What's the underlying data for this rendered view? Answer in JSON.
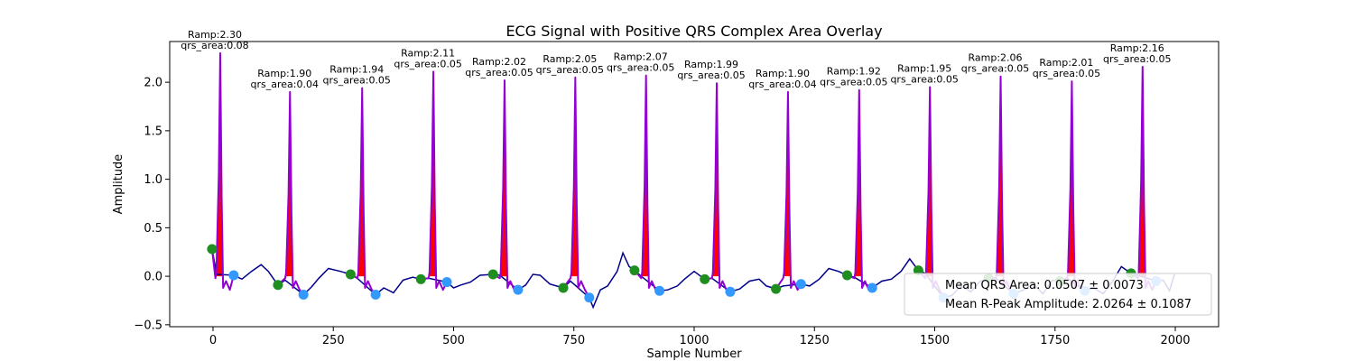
{
  "chart_data": {
    "type": "line",
    "title": "ECG Signal with Positive QRS Complex Area Overlay",
    "xlabel": "Sample Number",
    "ylabel": "Amplitude",
    "xlim": [
      -90,
      2090
    ],
    "ylim": [
      -0.52,
      2.42
    ],
    "xticks": [
      0,
      250,
      500,
      750,
      1000,
      1250,
      1500,
      1750,
      2000
    ],
    "yticks": [
      -0.5,
      0.0,
      0.5,
      1.0,
      1.5,
      2.0
    ],
    "grid": false,
    "legend_position": "lower-right",
    "legend": [
      "Mean QRS Area: 0.0507 ± 0.0073",
      "Mean R-Peak Amplitude: 2.0264 ± 0.1087"
    ],
    "colors": {
      "signal": "#00008b",
      "qrs_segment": "#9400d3",
      "qrs_area": "#ff0000",
      "q_point": "#1e8e1e",
      "s_point": "#3399ff"
    },
    "beats": [
      {
        "r_x": 15,
        "r_amp": 2.3,
        "qrs_area": 0.08,
        "q_x": -2,
        "q_y": 0.28,
        "s_x": 43,
        "s_y": 0.01,
        "label_amp": "Ramp:2.30",
        "label_area": "qrs_area:0.08"
      },
      {
        "r_x": 160,
        "r_amp": 1.9,
        "qrs_area": 0.04,
        "q_x": 135,
        "q_y": -0.09,
        "s_x": 188,
        "s_y": -0.19,
        "label_amp": "Ramp:1.90",
        "label_area": "qrs_area:0.04"
      },
      {
        "r_x": 310,
        "r_amp": 1.94,
        "qrs_area": 0.05,
        "q_x": 286,
        "q_y": 0.02,
        "s_x": 338,
        "s_y": -0.19,
        "label_amp": "Ramp:1.94",
        "label_area": "qrs_area:0.05"
      },
      {
        "r_x": 458,
        "r_amp": 2.11,
        "qrs_area": 0.05,
        "q_x": 432,
        "q_y": -0.03,
        "s_x": 486,
        "s_y": -0.06,
        "label_amp": "Ramp:2.11",
        "label_area": "qrs_area:0.05"
      },
      {
        "r_x": 606,
        "r_amp": 2.02,
        "qrs_area": 0.05,
        "q_x": 582,
        "q_y": 0.02,
        "s_x": 634,
        "s_y": -0.14,
        "label_amp": "Ramp:2.02",
        "label_area": "qrs_area:0.05"
      },
      {
        "r_x": 753,
        "r_amp": 2.05,
        "qrs_area": 0.05,
        "q_x": 728,
        "q_y": -0.12,
        "s_x": 782,
        "s_y": -0.22,
        "label_amp": "Ramp:2.05",
        "label_area": "qrs_area:0.05"
      },
      {
        "r_x": 900,
        "r_amp": 2.07,
        "qrs_area": 0.05,
        "q_x": 876,
        "q_y": 0.06,
        "s_x": 928,
        "s_y": -0.15,
        "label_amp": "Ramp:2.07",
        "label_area": "qrs_area:0.05"
      },
      {
        "r_x": 1047,
        "r_amp": 1.99,
        "qrs_area": 0.05,
        "q_x": 1022,
        "q_y": -0.03,
        "s_x": 1075,
        "s_y": -0.16,
        "label_amp": "Ramp:1.99",
        "label_area": "qrs_area:0.05"
      },
      {
        "r_x": 1195,
        "r_amp": 1.9,
        "qrs_area": 0.04,
        "q_x": 1170,
        "q_y": -0.13,
        "s_x": 1222,
        "s_y": -0.08,
        "label_amp": "Ramp:1.90",
        "label_area": "qrs_area:0.04"
      },
      {
        "r_x": 1343,
        "r_amp": 1.92,
        "qrs_area": 0.05,
        "q_x": 1318,
        "q_y": 0.01,
        "s_x": 1370,
        "s_y": -0.12,
        "label_amp": "Ramp:1.92",
        "label_area": "qrs_area:0.05"
      },
      {
        "r_x": 1490,
        "r_amp": 1.95,
        "qrs_area": 0.05,
        "q_x": 1466,
        "q_y": 0.06,
        "s_x": 1518,
        "s_y": -0.22,
        "label_amp": "Ramp:1.95",
        "label_area": "qrs_area:0.05"
      },
      {
        "r_x": 1637,
        "r_amp": 2.06,
        "qrs_area": 0.05,
        "q_x": 1612,
        "q_y": -0.02,
        "s_x": 1664,
        "s_y": -0.18,
        "label_amp": "Ramp:2.06",
        "label_area": "qrs_area:0.05"
      },
      {
        "r_x": 1785,
        "r_amp": 2.01,
        "qrs_area": 0.05,
        "q_x": 1760,
        "q_y": -0.05,
        "s_x": 1812,
        "s_y": -0.15,
        "label_amp": "Ramp:2.01",
        "label_area": "qrs_area:0.05"
      },
      {
        "r_x": 1932,
        "r_amp": 2.16,
        "qrs_area": 0.05,
        "q_x": 1908,
        "q_y": 0.03,
        "s_x": 1960,
        "s_y": -0.05,
        "label_amp": "Ramp:2.16",
        "label_area": "qrs_area:0.05"
      }
    ],
    "baseline": [
      [
        -2,
        0.28
      ],
      [
        8,
        0.02
      ],
      [
        43,
        0.01
      ],
      [
        60,
        -0.03
      ],
      [
        80,
        0.05
      ],
      [
        100,
        0.12
      ],
      [
        115,
        0.05
      ],
      [
        135,
        -0.09
      ],
      [
        150,
        -0.04
      ],
      [
        188,
        -0.19
      ],
      [
        205,
        -0.11
      ],
      [
        220,
        -0.02
      ],
      [
        240,
        0.08
      ],
      [
        265,
        0.05
      ],
      [
        286,
        0.02
      ],
      [
        300,
        -0.02
      ],
      [
        338,
        -0.19
      ],
      [
        355,
        -0.12
      ],
      [
        375,
        -0.17
      ],
      [
        395,
        -0.04
      ],
      [
        415,
        -0.01
      ],
      [
        432,
        -0.03
      ],
      [
        448,
        -0.02
      ],
      [
        486,
        -0.06
      ],
      [
        500,
        -0.12
      ],
      [
        515,
        -0.09
      ],
      [
        535,
        -0.06
      ],
      [
        555,
        0.01
      ],
      [
        582,
        0.02
      ],
      [
        596,
        0.01
      ],
      [
        634,
        -0.14
      ],
      [
        650,
        -0.09
      ],
      [
        665,
        0.02
      ],
      [
        680,
        0.01
      ],
      [
        700,
        -0.08
      ],
      [
        728,
        -0.12
      ],
      [
        743,
        -0.05
      ],
      [
        782,
        -0.22
      ],
      [
        790,
        -0.32
      ],
      [
        805,
        -0.14
      ],
      [
        820,
        -0.1
      ],
      [
        840,
        0.05
      ],
      [
        852,
        0.24
      ],
      [
        865,
        0.1
      ],
      [
        876,
        0.06
      ],
      [
        890,
        0.0
      ],
      [
        928,
        -0.15
      ],
      [
        945,
        -0.14
      ],
      [
        965,
        -0.1
      ],
      [
        980,
        -0.03
      ],
      [
        1000,
        0.05
      ],
      [
        1022,
        -0.03
      ],
      [
        1037,
        -0.02
      ],
      [
        1075,
        -0.16
      ],
      [
        1095,
        -0.13
      ],
      [
        1115,
        -0.05
      ],
      [
        1135,
        -0.03
      ],
      [
        1150,
        -0.1
      ],
      [
        1170,
        -0.13
      ],
      [
        1185,
        -0.1
      ],
      [
        1222,
        -0.08
      ],
      [
        1240,
        -0.1
      ],
      [
        1260,
        -0.03
      ],
      [
        1280,
        0.08
      ],
      [
        1300,
        0.05
      ],
      [
        1318,
        0.01
      ],
      [
        1333,
        -0.01
      ],
      [
        1370,
        -0.12
      ],
      [
        1390,
        -0.05
      ],
      [
        1410,
        -0.03
      ],
      [
        1430,
        0.05
      ],
      [
        1448,
        0.18
      ],
      [
        1466,
        0.06
      ],
      [
        1480,
        0.03
      ],
      [
        1518,
        -0.22
      ],
      [
        1535,
        -0.2
      ],
      [
        1555,
        -0.1
      ],
      [
        1575,
        -0.16
      ],
      [
        1595,
        -0.05
      ],
      [
        1612,
        -0.02
      ],
      [
        1627,
        -0.02
      ],
      [
        1664,
        -0.18
      ],
      [
        1685,
        -0.14
      ],
      [
        1705,
        -0.08
      ],
      [
        1725,
        -0.18
      ],
      [
        1745,
        -0.04
      ],
      [
        1760,
        -0.05
      ],
      [
        1775,
        -0.02
      ],
      [
        1812,
        -0.15
      ],
      [
        1830,
        -0.12
      ],
      [
        1850,
        -0.18
      ],
      [
        1870,
        -0.05
      ],
      [
        1888,
        0.1
      ],
      [
        1908,
        0.03
      ],
      [
        1922,
        0.01
      ],
      [
        1960,
        -0.05
      ],
      [
        1975,
        -0.04
      ],
      [
        1988,
        -0.15
      ],
      [
        1998,
        0.02
      ]
    ]
  }
}
